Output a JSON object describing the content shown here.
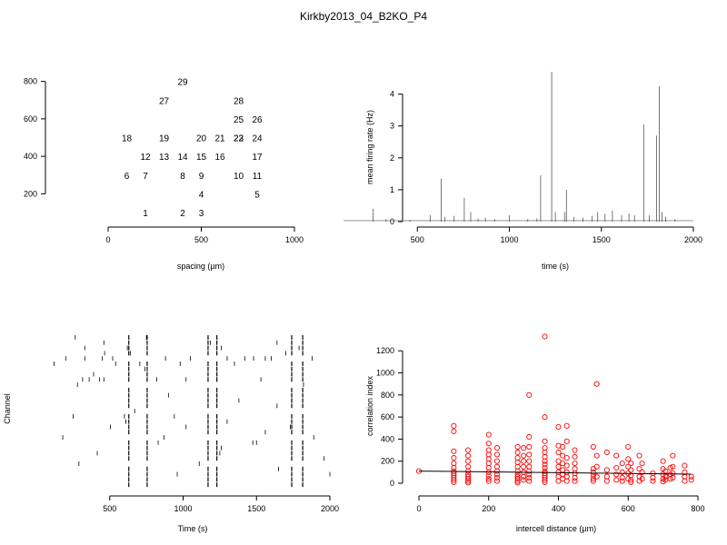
{
  "title": "Kirkby2013_04_B2KO_P4",
  "colors": {
    "axis": "#000000",
    "scatter": "#ff0000",
    "trace": "#555555",
    "raster": "#000000"
  },
  "chart_data": [
    {
      "id": "layout",
      "type": "scatter",
      "xlabel": "spacing (µm)",
      "ylabel": "",
      "xlim": [
        0,
        1000
      ],
      "ylim": [
        100,
        900
      ],
      "xticks": [
        0,
        500,
        1000
      ],
      "yticks": [
        200,
        400,
        600,
        800
      ],
      "points": [
        {
          "label": "1",
          "x": 200,
          "y": 100
        },
        {
          "label": "2",
          "x": 400,
          "y": 100
        },
        {
          "label": "3",
          "x": 500,
          "y": 100
        },
        {
          "label": "4",
          "x": 500,
          "y": 200
        },
        {
          "label": "5",
          "x": 800,
          "y": 200
        },
        {
          "label": "6",
          "x": 100,
          "y": 300
        },
        {
          "label": "7",
          "x": 200,
          "y": 300
        },
        {
          "label": "8",
          "x": 400,
          "y": 300
        },
        {
          "label": "9",
          "x": 500,
          "y": 300
        },
        {
          "label": "10",
          "x": 700,
          "y": 300
        },
        {
          "label": "11",
          "x": 800,
          "y": 300
        },
        {
          "label": "12",
          "x": 200,
          "y": 400
        },
        {
          "label": "13",
          "x": 300,
          "y": 400
        },
        {
          "label": "14",
          "x": 400,
          "y": 400
        },
        {
          "label": "15",
          "x": 500,
          "y": 400
        },
        {
          "label": "16",
          "x": 600,
          "y": 400
        },
        {
          "label": "17",
          "x": 800,
          "y": 400
        },
        {
          "label": "18",
          "x": 100,
          "y": 500
        },
        {
          "label": "19",
          "x": 300,
          "y": 500
        },
        {
          "label": "20",
          "x": 500,
          "y": 500
        },
        {
          "label": "21",
          "x": 600,
          "y": 500
        },
        {
          "label": "22",
          "x": 700,
          "y": 500
        },
        {
          "label": "23",
          "x": 700,
          "y": 500
        },
        {
          "label": "24",
          "x": 800,
          "y": 500
        },
        {
          "label": "25",
          "x": 700,
          "y": 600
        },
        {
          "label": "26",
          "x": 800,
          "y": 600
        },
        {
          "label": "27",
          "x": 300,
          "y": 700
        },
        {
          "label": "28",
          "x": 700,
          "y": 700
        },
        {
          "label": "29",
          "x": 400,
          "y": 800
        }
      ]
    },
    {
      "id": "rate",
      "type": "line",
      "xlabel": "time (s)",
      "ylabel": "mean firing rate (Hz)",
      "xlim": [
        100,
        2000
      ],
      "ylim": [
        0,
        4.7
      ],
      "xticks": [
        500,
        1000,
        1500,
        2000
      ],
      "yticks": [
        0,
        1,
        2,
        3,
        4
      ],
      "baseline": 0.03,
      "peaks": [
        {
          "t": 260,
          "v": 0.4
        },
        {
          "t": 330,
          "v": 0.08
        },
        {
          "t": 460,
          "v": 0.06
        },
        {
          "t": 570,
          "v": 0.2
        },
        {
          "t": 630,
          "v": 1.35
        },
        {
          "t": 650,
          "v": 0.15
        },
        {
          "t": 700,
          "v": 0.18
        },
        {
          "t": 755,
          "v": 0.75
        },
        {
          "t": 790,
          "v": 0.3
        },
        {
          "t": 830,
          "v": 0.1
        },
        {
          "t": 870,
          "v": 0.12
        },
        {
          "t": 920,
          "v": 0.08
        },
        {
          "t": 1000,
          "v": 0.2
        },
        {
          "t": 1100,
          "v": 0.08
        },
        {
          "t": 1150,
          "v": 0.1
        },
        {
          "t": 1170,
          "v": 1.45
        },
        {
          "t": 1230,
          "v": 4.7
        },
        {
          "t": 1250,
          "v": 0.3
        },
        {
          "t": 1300,
          "v": 0.3
        },
        {
          "t": 1310,
          "v": 1.0
        },
        {
          "t": 1350,
          "v": 0.15
        },
        {
          "t": 1400,
          "v": 0.12
        },
        {
          "t": 1450,
          "v": 0.18
        },
        {
          "t": 1480,
          "v": 0.3
        },
        {
          "t": 1520,
          "v": 0.25
        },
        {
          "t": 1560,
          "v": 0.35
        },
        {
          "t": 1610,
          "v": 0.2
        },
        {
          "t": 1650,
          "v": 0.25
        },
        {
          "t": 1680,
          "v": 0.2
        },
        {
          "t": 1730,
          "v": 3.05
        },
        {
          "t": 1760,
          "v": 0.2
        },
        {
          "t": 1800,
          "v": 2.7
        },
        {
          "t": 1815,
          "v": 4.25
        },
        {
          "t": 1830,
          "v": 0.3
        },
        {
          "t": 1850,
          "v": 0.15
        },
        {
          "t": 1900,
          "v": 0.08
        }
      ]
    },
    {
      "id": "raster",
      "type": "raster",
      "xlabel": "Time (s)",
      "ylabel": "Channel",
      "xlim": [
        100,
        2000
      ],
      "xticks": [
        500,
        1000,
        1500,
        2000
      ],
      "channels": 29,
      "sync_times": [
        630,
        755,
        1170,
        1230,
        1740,
        1815
      ],
      "sporadic": [
        [
          1,
          265
        ],
        [
          1,
          750
        ],
        [
          2,
          460
        ],
        [
          2,
          1185
        ],
        [
          2,
          1640
        ],
        [
          3,
          330
        ],
        [
          3,
          620
        ],
        [
          3,
          1260
        ],
        [
          3,
          1790
        ],
        [
          4,
          465
        ],
        [
          4,
          640
        ],
        [
          4,
          1700
        ],
        [
          5,
          200
        ],
        [
          5,
          330
        ],
        [
          5,
          450
        ],
        [
          5,
          520
        ],
        [
          5,
          880
        ],
        [
          5,
          1050
        ],
        [
          5,
          1300
        ],
        [
          5,
          1420
        ],
        [
          5,
          1480
        ],
        [
          5,
          1560
        ],
        [
          5,
          1600
        ],
        [
          5,
          1880
        ],
        [
          6,
          120
        ],
        [
          6,
          540
        ],
        [
          6,
          705
        ],
        [
          6,
          980
        ],
        [
          6,
          1350
        ],
        [
          7,
          740
        ],
        [
          8,
          390
        ],
        [
          9,
          315
        ],
        [
          9,
          360
        ],
        [
          9,
          430
        ],
        [
          9,
          460
        ],
        [
          9,
          820
        ],
        [
          9,
          1020
        ],
        [
          9,
          1230
        ],
        [
          9,
          1530
        ],
        [
          10,
          280
        ],
        [
          10,
          1820
        ],
        [
          12,
          900
        ],
        [
          13,
          1380
        ],
        [
          14,
          1640
        ],
        [
          15,
          670
        ],
        [
          16,
          250
        ],
        [
          16,
          600
        ],
        [
          16,
          940
        ],
        [
          17,
          610
        ],
        [
          17,
          1300
        ],
        [
          18,
          505
        ],
        [
          18,
          1020
        ],
        [
          18,
          1730
        ],
        [
          19,
          1560
        ],
        [
          20,
          180
        ],
        [
          20,
          870
        ],
        [
          20,
          1890
        ],
        [
          21,
          830
        ],
        [
          21,
          1475
        ],
        [
          21,
          1500
        ],
        [
          22,
          1260
        ],
        [
          23,
          415
        ],
        [
          23,
          1250
        ],
        [
          24,
          1960
        ],
        [
          25,
          290
        ],
        [
          25,
          1110
        ],
        [
          26,
          1650
        ],
        [
          27,
          2000
        ],
        [
          27,
          960
        ]
      ]
    },
    {
      "id": "corr",
      "type": "scatter",
      "xlabel": "intercell distance (µm)",
      "ylabel": "correlation index",
      "xlim": [
        0,
        800
      ],
      "ylim": [
        0,
        1350
      ],
      "xticks": [
        0,
        200,
        400,
        600,
        800
      ],
      "yticks": [
        0,
        200,
        400,
        600,
        800,
        1000,
        1200
      ],
      "fit": {
        "x": [
          0,
          780
        ],
        "y": [
          110,
          82
        ]
      },
      "points": [
        [
          0,
          110
        ],
        [
          100,
          520
        ],
        [
          100,
          470
        ],
        [
          100,
          290
        ],
        [
          100,
          230
        ],
        [
          100,
          180
        ],
        [
          100,
          140
        ],
        [
          100,
          110
        ],
        [
          100,
          90
        ],
        [
          100,
          70
        ],
        [
          100,
          50
        ],
        [
          100,
          30
        ],
        [
          100,
          10
        ],
        [
          141,
          300
        ],
        [
          141,
          250
        ],
        [
          141,
          200
        ],
        [
          141,
          150
        ],
        [
          141,
          110
        ],
        [
          141,
          80
        ],
        [
          141,
          60
        ],
        [
          141,
          40
        ],
        [
          141,
          20
        ],
        [
          141,
          5
        ],
        [
          200,
          440
        ],
        [
          200,
          360
        ],
        [
          200,
          300
        ],
        [
          200,
          260
        ],
        [
          200,
          220
        ],
        [
          200,
          180
        ],
        [
          200,
          140
        ],
        [
          200,
          100
        ],
        [
          200,
          70
        ],
        [
          200,
          40
        ],
        [
          200,
          20
        ],
        [
          224,
          320
        ],
        [
          224,
          260
        ],
        [
          224,
          200
        ],
        [
          224,
          150
        ],
        [
          224,
          110
        ],
        [
          224,
          80
        ],
        [
          224,
          50
        ],
        [
          224,
          20
        ],
        [
          283,
          330
        ],
        [
          283,
          280
        ],
        [
          283,
          230
        ],
        [
          283,
          190
        ],
        [
          283,
          150
        ],
        [
          283,
          110
        ],
        [
          283,
          80
        ],
        [
          283,
          60
        ],
        [
          283,
          40
        ],
        [
          283,
          20
        ],
        [
          283,
          5
        ],
        [
          300,
          320
        ],
        [
          300,
          250
        ],
        [
          300,
          200
        ],
        [
          300,
          150
        ],
        [
          300,
          100
        ],
        [
          300,
          60
        ],
        [
          300,
          30
        ],
        [
          316,
          800
        ],
        [
          316,
          420
        ],
        [
          316,
          330
        ],
        [
          316,
          260
        ],
        [
          316,
          200
        ],
        [
          316,
          150
        ],
        [
          316,
          110
        ],
        [
          316,
          80
        ],
        [
          316,
          50
        ],
        [
          316,
          20
        ],
        [
          361,
          1330
        ],
        [
          361,
          600
        ],
        [
          361,
          380
        ],
        [
          361,
          320
        ],
        [
          361,
          280
        ],
        [
          361,
          240
        ],
        [
          361,
          200
        ],
        [
          361,
          170
        ],
        [
          361,
          140
        ],
        [
          361,
          110
        ],
        [
          361,
          90
        ],
        [
          361,
          70
        ],
        [
          361,
          50
        ],
        [
          361,
          30
        ],
        [
          361,
          10
        ],
        [
          400,
          510
        ],
        [
          400,
          340
        ],
        [
          400,
          280
        ],
        [
          400,
          200
        ],
        [
          400,
          150
        ],
        [
          400,
          100
        ],
        [
          400,
          60
        ],
        [
          400,
          20
        ],
        [
          412,
          330
        ],
        [
          412,
          250
        ],
        [
          412,
          180
        ],
        [
          412,
          120
        ],
        [
          412,
          80
        ],
        [
          412,
          40
        ],
        [
          424,
          520
        ],
        [
          424,
          380
        ],
        [
          424,
          230
        ],
        [
          424,
          160
        ],
        [
          424,
          100
        ],
        [
          424,
          60
        ],
        [
          424,
          20
        ],
        [
          447,
          300
        ],
        [
          447,
          240
        ],
        [
          447,
          180
        ],
        [
          447,
          130
        ],
        [
          447,
          90
        ],
        [
          447,
          50
        ],
        [
          447,
          20
        ],
        [
          500,
          330
        ],
        [
          500,
          130
        ],
        [
          500,
          100
        ],
        [
          500,
          70
        ],
        [
          500,
          40
        ],
        [
          500,
          20
        ],
        [
          510,
          900
        ],
        [
          510,
          250
        ],
        [
          510,
          150
        ],
        [
          510,
          60
        ],
        [
          539,
          280
        ],
        [
          539,
          120
        ],
        [
          539,
          60
        ],
        [
          539,
          20
        ],
        [
          566,
          250
        ],
        [
          566,
          140
        ],
        [
          566,
          80
        ],
        [
          566,
          30
        ],
        [
          583,
          180
        ],
        [
          583,
          100
        ],
        [
          583,
          50
        ],
        [
          583,
          20
        ],
        [
          600,
          330
        ],
        [
          600,
          220
        ],
        [
          600,
          150
        ],
        [
          600,
          90
        ],
        [
          600,
          40
        ],
        [
          608,
          180
        ],
        [
          608,
          120
        ],
        [
          608,
          70
        ],
        [
          608,
          30
        ],
        [
          608,
          10
        ],
        [
          632,
          250
        ],
        [
          632,
          130
        ],
        [
          632,
          60
        ],
        [
          632,
          20
        ],
        [
          640,
          180
        ],
        [
          640,
          100
        ],
        [
          640,
          40
        ],
        [
          671,
          90
        ],
        [
          671,
          50
        ],
        [
          671,
          20
        ],
        [
          700,
          200
        ],
        [
          700,
          130
        ],
        [
          700,
          80
        ],
        [
          700,
          40
        ],
        [
          700,
          15
        ],
        [
          707,
          110
        ],
        [
          707,
          60
        ],
        [
          707,
          30
        ],
        [
          721,
          140
        ],
        [
          721,
          80
        ],
        [
          721,
          40
        ],
        [
          728,
          250
        ],
        [
          728,
          150
        ],
        [
          728,
          90
        ],
        [
          728,
          50
        ],
        [
          762,
          160
        ],
        [
          762,
          100
        ],
        [
          762,
          60
        ],
        [
          762,
          20
        ],
        [
          781,
          60
        ],
        [
          781,
          30
        ]
      ]
    }
  ]
}
